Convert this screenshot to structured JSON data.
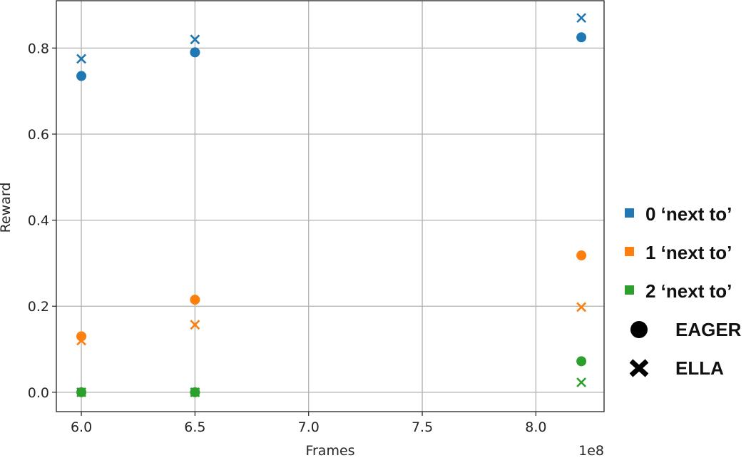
{
  "chart_data": {
    "type": "scatter",
    "xlabel": "Frames",
    "ylabel": "Reward",
    "x_offset_label": "1e8",
    "xlim": [
      5.89,
      8.3
    ],
    "ylim": [
      -0.045,
      0.91
    ],
    "x_ticks": [
      6.0,
      6.5,
      7.0,
      7.5,
      8.0
    ],
    "x_tick_labels": [
      "6.0",
      "6.5",
      "7.0",
      "7.5",
      "8.0"
    ],
    "y_ticks": [
      0.0,
      0.2,
      0.4,
      0.6,
      0.8
    ],
    "y_tick_labels": [
      "0.0",
      "0.2",
      "0.4",
      "0.6",
      "0.8"
    ],
    "grid": true,
    "legend_position": "right",
    "series": [
      {
        "name": "0 ‘next to’",
        "method": "EAGER",
        "marker": "circle",
        "color": "#1f77b4",
        "x": [
          6.0,
          6.5,
          8.2
        ],
        "y": [
          0.735,
          0.79,
          0.825
        ]
      },
      {
        "name": "0 ‘next to’",
        "method": "ELLA",
        "marker": "x",
        "color": "#1f77b4",
        "x": [
          6.0,
          6.5,
          8.2
        ],
        "y": [
          0.775,
          0.82,
          0.87
        ]
      },
      {
        "name": "1 ‘next to’",
        "method": "EAGER",
        "marker": "circle",
        "color": "#ff7f0e",
        "x": [
          6.0,
          6.5,
          8.2
        ],
        "y": [
          0.13,
          0.215,
          0.318
        ]
      },
      {
        "name": "1 ‘next to’",
        "method": "ELLA",
        "marker": "x",
        "color": "#ff7f0e",
        "x": [
          6.0,
          6.5,
          8.2
        ],
        "y": [
          0.12,
          0.157,
          0.198
        ]
      },
      {
        "name": "2 ‘next to’",
        "method": "EAGER",
        "marker": "circle",
        "color": "#2ca02c",
        "x": [
          6.0,
          6.5,
          8.2
        ],
        "y": [
          0.0,
          0.0,
          0.072
        ]
      },
      {
        "name": "2 ‘next to’",
        "method": "ELLA",
        "marker": "x",
        "color": "#2ca02c",
        "x": [
          6.0,
          6.5,
          8.2
        ],
        "y": [
          0.0,
          0.0,
          0.023
        ]
      },
      {
        "name": "2 ‘next to’",
        "method": "square",
        "marker": "square",
        "color": "#2ca02c",
        "x": [
          6.0,
          6.5
        ],
        "y": [
          0.0,
          0.0
        ]
      }
    ],
    "legend": [
      {
        "label": "0 ‘next to’",
        "swatch": "square",
        "color": "#1f77b4"
      },
      {
        "label": "1 ‘next to’",
        "swatch": "square",
        "color": "#ff7f0e"
      },
      {
        "label": "2 ‘next to’",
        "swatch": "square",
        "color": "#2ca02c"
      },
      {
        "label": "EAGER",
        "swatch": "circle",
        "color": "#000000"
      },
      {
        "label": "ELLA",
        "swatch": "x",
        "color": "#000000"
      }
    ]
  }
}
